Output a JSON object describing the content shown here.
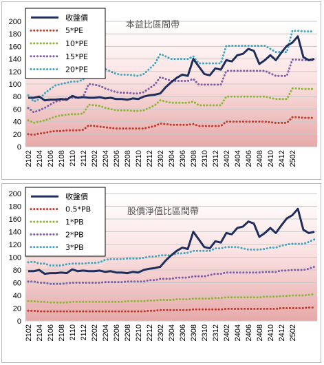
{
  "colors": {
    "close": "#1f2d5c",
    "red": "#c0392b",
    "green": "#8db536",
    "purple": "#7d5ba6",
    "teal": "#3fa6c0"
  },
  "chart_data": [
    {
      "type": "line",
      "title": "本益比區間帶",
      "xlabel": "",
      "ylabel": "",
      "ylim": [
        0,
        200
      ],
      "yticks": [
        0,
        20,
        40,
        60,
        80,
        100,
        120,
        140,
        160,
        180,
        200
      ],
      "xtick_labels": [
        "2102",
        "2104",
        "2106",
        "2108",
        "2110",
        "2112",
        "2202",
        "2204",
        "2206",
        "2208",
        "2210",
        "2212",
        "2302",
        "2304",
        "2306",
        "2308",
        "2310",
        "2312",
        "2402",
        "2404",
        "2406",
        "2408",
        "2410",
        "2412",
        "2502"
      ],
      "grid": true,
      "legend_position": "top-left",
      "series": [
        {
          "name": "收盤價",
          "style": "solid",
          "color": "#1f2d5c",
          "values": [
            78,
            78,
            80,
            74,
            75,
            75,
            76,
            75,
            81,
            78,
            79,
            78,
            78,
            79,
            77,
            78,
            76,
            76,
            75,
            77,
            76,
            80,
            82,
            83,
            85,
            95,
            103,
            110,
            115,
            113,
            140,
            128,
            116,
            114,
            125,
            123,
            138,
            136,
            146,
            148,
            156,
            153,
            132,
            138,
            146,
            138,
            150,
            161,
            166,
            176,
            143,
            138,
            140
          ]
        },
        {
          "name": "5*PE",
          "style": "dotted",
          "color": "#c0392b",
          "values": [
            20,
            19,
            21,
            22,
            24,
            25,
            25,
            26,
            26,
            26,
            27,
            34,
            33,
            32,
            31,
            30,
            29,
            29,
            29,
            29,
            29,
            29,
            31,
            33,
            37,
            36,
            35,
            35,
            35,
            35,
            36,
            33,
            33,
            33,
            33,
            33,
            40,
            40,
            40,
            40,
            40,
            40,
            40,
            40,
            39,
            38,
            38,
            38,
            47,
            47,
            46,
            46,
            46
          ]
        },
        {
          "name": "10*PE",
          "style": "dotted",
          "color": "#8db536",
          "values": [
            42,
            38,
            40,
            42,
            45,
            48,
            50,
            51,
            52,
            52,
            53,
            67,
            66,
            65,
            62,
            60,
            58,
            58,
            58,
            57,
            57,
            58,
            62,
            66,
            74,
            72,
            70,
            70,
            70,
            70,
            72,
            66,
            66,
            66,
            66,
            66,
            80,
            80,
            80,
            80,
            80,
            80,
            80,
            80,
            78,
            76,
            76,
            76,
            93,
            93,
            92,
            92,
            92
          ]
        },
        {
          "name": "15*PE",
          "style": "dotted",
          "color": "#7d5ba6",
          "values": [
            62,
            55,
            58,
            62,
            67,
            72,
            74,
            77,
            78,
            78,
            80,
            100,
            99,
            97,
            93,
            90,
            87,
            86,
            86,
            85,
            85,
            87,
            93,
            99,
            111,
            108,
            105,
            105,
            105,
            105,
            108,
            99,
            99,
            99,
            99,
            99,
            121,
            121,
            121,
            121,
            121,
            121,
            121,
            121,
            117,
            113,
            113,
            113,
            139,
            139,
            138,
            138,
            138
          ]
        },
        {
          "name": "20*PE",
          "style": "dotted",
          "color": "#3fa6c0",
          "values": [
            82,
            72,
            76,
            85,
            92,
            98,
            100,
            102,
            104,
            104,
            107,
            133,
            132,
            130,
            124,
            120,
            116,
            115,
            115,
            114,
            113,
            116,
            124,
            132,
            148,
            144,
            140,
            140,
            140,
            140,
            144,
            133,
            133,
            133,
            133,
            133,
            161,
            161,
            161,
            161,
            161,
            161,
            161,
            161,
            156,
            151,
            151,
            151,
            185,
            185,
            184,
            184,
            184
          ]
        }
      ]
    },
    {
      "type": "line",
      "title": "股價淨值比區間帶",
      "xlabel": "",
      "ylabel": "",
      "ylim": [
        0,
        200
      ],
      "yticks": [
        0,
        20,
        40,
        60,
        80,
        100,
        120,
        140,
        160,
        180,
        200
      ],
      "xtick_labels": [
        "2102",
        "2104",
        "2106",
        "2108",
        "2110",
        "2112",
        "2202",
        "2204",
        "2206",
        "2208",
        "2210",
        "2212",
        "2302",
        "2304",
        "2306",
        "2308",
        "2310",
        "2312",
        "2402",
        "2404",
        "2406",
        "2408",
        "2410",
        "2412",
        "2502"
      ],
      "grid": true,
      "legend_position": "top-left",
      "series": [
        {
          "name": "收盤價",
          "style": "solid",
          "color": "#1f2d5c",
          "values": [
            78,
            78,
            80,
            74,
            75,
            75,
            76,
            75,
            81,
            78,
            79,
            78,
            78,
            79,
            77,
            78,
            76,
            76,
            75,
            77,
            76,
            80,
            82,
            83,
            85,
            95,
            103,
            110,
            115,
            113,
            140,
            128,
            116,
            114,
            125,
            123,
            138,
            136,
            146,
            148,
            156,
            153,
            132,
            138,
            146,
            138,
            150,
            161,
            166,
            176,
            143,
            138,
            140
          ]
        },
        {
          "name": "0.5*PB",
          "style": "dotted",
          "color": "#c0392b",
          "values": [
            16,
            16,
            15,
            15,
            15,
            15,
            15,
            15,
            15,
            15,
            15,
            15,
            15,
            15,
            15,
            15,
            15,
            15,
            15,
            15,
            15,
            15,
            16,
            16,
            17,
            17,
            17,
            17,
            17,
            17,
            18,
            18,
            18,
            18,
            18,
            18,
            19,
            19,
            19,
            19,
            19,
            19,
            19,
            19,
            19,
            19,
            20,
            20,
            20,
            20,
            20,
            21,
            21
          ]
        },
        {
          "name": "1*PB",
          "style": "dotted",
          "color": "#8db536",
          "values": [
            31,
            31,
            30,
            30,
            29,
            29,
            29,
            29,
            30,
            30,
            30,
            30,
            30,
            30,
            30,
            30,
            30,
            30,
            31,
            31,
            31,
            31,
            32,
            32,
            33,
            33,
            33,
            34,
            34,
            34,
            35,
            35,
            35,
            35,
            36,
            36,
            37,
            37,
            37,
            37,
            37,
            37,
            37,
            38,
            38,
            38,
            39,
            39,
            40,
            40,
            40,
            41,
            42
          ]
        },
        {
          "name": "2*PB",
          "style": "dotted",
          "color": "#7d5ba6",
          "values": [
            62,
            62,
            60,
            60,
            58,
            58,
            58,
            59,
            60,
            60,
            60,
            60,
            60,
            60,
            61,
            61,
            61,
            61,
            62,
            62,
            62,
            62,
            64,
            64,
            66,
            66,
            66,
            68,
            68,
            68,
            70,
            70,
            70,
            72,
            74,
            74,
            76,
            76,
            76,
            76,
            76,
            76,
            76,
            77,
            77,
            77,
            79,
            79,
            80,
            80,
            80,
            82,
            85
          ]
        },
        {
          "name": "3*PB",
          "style": "dotted",
          "color": "#3fa6c0",
          "values": [
            92,
            93,
            90,
            90,
            87,
            87,
            87,
            89,
            90,
            90,
            90,
            91,
            91,
            92,
            96,
            97,
            97,
            97,
            98,
            98,
            98,
            99,
            101,
            101,
            103,
            103,
            103,
            106,
            106,
            107,
            110,
            110,
            110,
            110,
            114,
            114,
            116,
            116,
            116,
            114,
            112,
            112,
            112,
            113,
            115,
            115,
            118,
            120,
            121,
            121,
            121,
            124,
            128
          ]
        }
      ]
    }
  ]
}
